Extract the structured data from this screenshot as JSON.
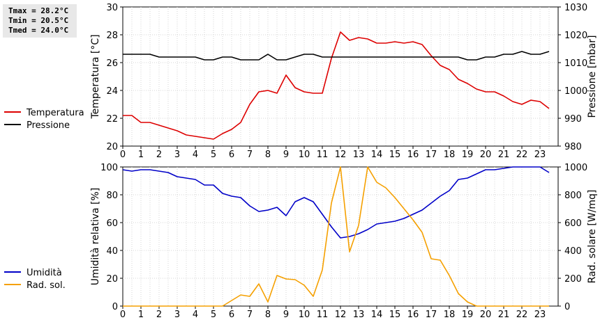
{
  "stats": {
    "tmax": "Tmax = 28.2°C",
    "tmin": "Tmin = 20.5°C",
    "tmed": "Tmed = 24.0°C"
  },
  "chart_data": [
    {
      "type": "line",
      "x_ticks": [
        "0",
        "1",
        "2",
        "3",
        "4",
        "5",
        "6",
        "7",
        "8",
        "9",
        "10",
        "11",
        "12",
        "13",
        "14",
        "15",
        "16",
        "17",
        "18",
        "19",
        "20",
        "21",
        "22",
        "23"
      ],
      "xlim": [
        0,
        24
      ],
      "grid": true,
      "legend_placement": "left",
      "y_left": {
        "label": "Temperatura [°C]",
        "lim": [
          20,
          30
        ],
        "ticks": [
          "20",
          "22",
          "24",
          "26",
          "28",
          "30"
        ]
      },
      "y_right": {
        "label": "Pressione [mbar]",
        "lim": [
          980,
          1030
        ],
        "ticks": [
          "980",
          "990",
          "1000",
          "1010",
          "1020",
          "1030"
        ]
      },
      "series": [
        {
          "name": "Temperatura",
          "axis": "left",
          "color": "#dd0000",
          "x": [
            0,
            0.5,
            1,
            1.5,
            2,
            2.5,
            3,
            3.5,
            4,
            4.5,
            5,
            5.5,
            6,
            6.5,
            7,
            7.5,
            8,
            8.5,
            9,
            9.5,
            10,
            10.5,
            11,
            11.5,
            12,
            12.5,
            13,
            13.5,
            14,
            14.5,
            15,
            15.5,
            16,
            16.5,
            17,
            17.5,
            18,
            18.5,
            19,
            19.5,
            20,
            20.5,
            21,
            21.5,
            22,
            22.5,
            23,
            23.5
          ],
          "y": [
            22.2,
            22.2,
            21.7,
            21.7,
            21.5,
            21.3,
            21.1,
            20.8,
            20.7,
            20.6,
            20.5,
            20.9,
            21.2,
            21.7,
            23.0,
            23.9,
            24.0,
            23.8,
            25.1,
            24.2,
            23.9,
            23.8,
            23.8,
            26.3,
            28.2,
            27.6,
            27.8,
            27.7,
            27.4,
            27.4,
            27.5,
            27.4,
            27.5,
            27.3,
            26.5,
            25.8,
            25.5,
            24.8,
            24.5,
            24.1,
            23.9,
            23.9,
            23.6,
            23.2,
            23.0,
            23.3,
            23.2,
            22.7
          ]
        },
        {
          "name": "Pressione",
          "axis": "right",
          "color": "#000000",
          "x": [
            0,
            0.5,
            1,
            1.5,
            2,
            2.5,
            3,
            3.5,
            4,
            4.5,
            5,
            5.5,
            6,
            6.5,
            7,
            7.5,
            8,
            8.5,
            9,
            9.5,
            10,
            10.5,
            11,
            11.5,
            12,
            12.5,
            13,
            13.5,
            14,
            14.5,
            15,
            15.5,
            16,
            16.5,
            17,
            17.5,
            18,
            18.5,
            19,
            19.5,
            20,
            20.5,
            21,
            21.5,
            22,
            22.5,
            23,
            23.5
          ],
          "y": [
            1013,
            1013,
            1013,
            1013,
            1012,
            1012,
            1012,
            1012,
            1012,
            1011,
            1011,
            1012,
            1012,
            1011,
            1011,
            1011,
            1013,
            1011,
            1011,
            1012,
            1013,
            1013,
            1012,
            1012,
            1012,
            1012,
            1012,
            1012,
            1012,
            1012,
            1012,
            1012,
            1012,
            1012,
            1012,
            1012,
            1012,
            1012,
            1011,
            1011,
            1012,
            1012,
            1013,
            1013,
            1014,
            1013,
            1013,
            1014
          ]
        }
      ]
    },
    {
      "type": "line",
      "x_ticks": [
        "0",
        "1",
        "2",
        "3",
        "4",
        "5",
        "6",
        "7",
        "8",
        "9",
        "10",
        "11",
        "12",
        "13",
        "14",
        "15",
        "16",
        "17",
        "18",
        "19",
        "20",
        "21",
        "22",
        "23"
      ],
      "xlim": [
        0,
        24
      ],
      "grid": true,
      "legend_placement": "left",
      "y_left": {
        "label": "Umidità relativa [%]",
        "lim": [
          0,
          100
        ],
        "ticks": [
          "0",
          "20",
          "40",
          "60",
          "80",
          "100"
        ]
      },
      "y_right": {
        "label": "Rad. solare [W/mq]",
        "lim": [
          0,
          1000
        ],
        "ticks": [
          "0",
          "200",
          "400",
          "600",
          "800",
          "1000"
        ]
      },
      "series": [
        {
          "name": "Umidità",
          "axis": "left",
          "color": "#0000c8",
          "x": [
            0,
            0.5,
            1,
            1.5,
            2,
            2.5,
            3,
            3.5,
            4,
            4.5,
            5,
            5.5,
            6,
            6.5,
            7,
            7.5,
            8,
            8.5,
            9,
            9.5,
            10,
            10.5,
            11,
            11.5,
            12,
            12.5,
            13,
            13.5,
            14,
            14.5,
            15,
            15.5,
            16,
            16.5,
            17,
            17.5,
            18,
            18.5,
            19,
            19.5,
            20,
            20.5,
            21,
            21.5,
            22,
            22.5,
            23,
            23.5
          ],
          "y": [
            98,
            97,
            98,
            98,
            97,
            96,
            93,
            92,
            91,
            87,
            87,
            81,
            79,
            78,
            72,
            68,
            69,
            71,
            65,
            75,
            78,
            75,
            66,
            57,
            49,
            50,
            52,
            55,
            59,
            60,
            61,
            63,
            66,
            69,
            74,
            79,
            83,
            91,
            92,
            95,
            98,
            98,
            99,
            100,
            100,
            100,
            100,
            96
          ]
        },
        {
          "name": "Rad. sol.",
          "axis": "right",
          "color": "#f5a000",
          "x": [
            0,
            0.5,
            1,
            1.5,
            2,
            2.5,
            3,
            3.5,
            4,
            4.5,
            5,
            5.5,
            6,
            6.5,
            7,
            7.5,
            8,
            8.5,
            9,
            9.5,
            10,
            10.5,
            11,
            11.5,
            12,
            12.5,
            13,
            13.5,
            14,
            14.5,
            15,
            15.5,
            16,
            16.5,
            17,
            17.5,
            18,
            18.5,
            19,
            19.5,
            20,
            20.5,
            21,
            21.5,
            22,
            22.5,
            23,
            23.5
          ],
          "y": [
            0,
            0,
            0,
            0,
            0,
            0,
            0,
            0,
            0,
            0,
            0,
            0,
            40,
            80,
            70,
            160,
            30,
            220,
            195,
            190,
            150,
            70,
            260,
            740,
            1010,
            390,
            580,
            1030,
            890,
            850,
            780,
            700,
            620,
            530,
            340,
            330,
            220,
            90,
            30,
            0,
            0,
            0,
            0,
            0,
            0,
            0,
            0,
            0
          ]
        }
      ]
    }
  ]
}
